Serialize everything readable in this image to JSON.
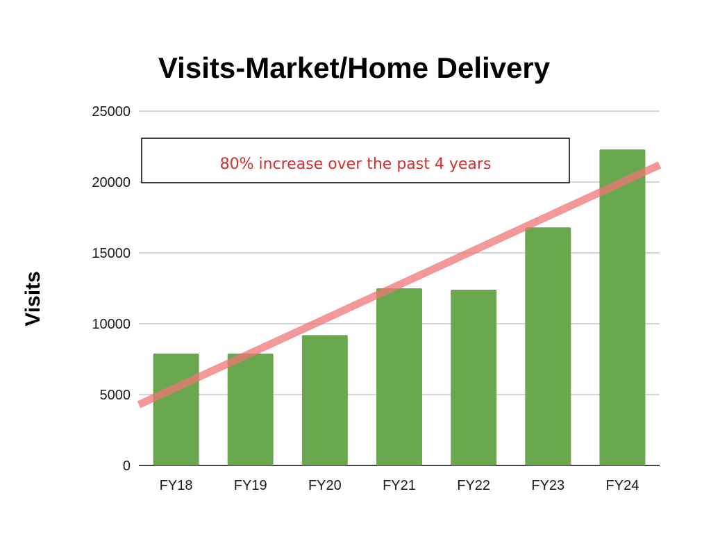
{
  "chart_data": {
    "type": "bar",
    "title": "Visits-Market/Home Delivery",
    "xlabel": "",
    "ylabel": "Visits",
    "categories": [
      "FY18",
      "FY19",
      "FY20",
      "FY21",
      "FY22",
      "FY23",
      "FY24"
    ],
    "values": [
      7900,
      7900,
      9200,
      12500,
      12400,
      16800,
      22300
    ],
    "ylim": [
      0,
      25000
    ],
    "yticks": [
      0,
      5000,
      10000,
      15000,
      20000,
      25000
    ],
    "ytick_labels": [
      "0",
      "5000",
      "10000",
      "15000",
      "20000",
      "25000"
    ],
    "grid": true,
    "legend": "none",
    "trendline": {
      "start": {
        "x": "FY18",
        "y": 5500
      },
      "end": {
        "x": "FY24",
        "y": 20000
      }
    },
    "annotation": {
      "text": "80% increase over the past 4 years"
    }
  },
  "colors": {
    "bar": "#6aa84f",
    "trendline": "#ef7575",
    "annotation_text": "#d32f2f",
    "gridline": "#c8c8c8",
    "axis": "#444444"
  }
}
